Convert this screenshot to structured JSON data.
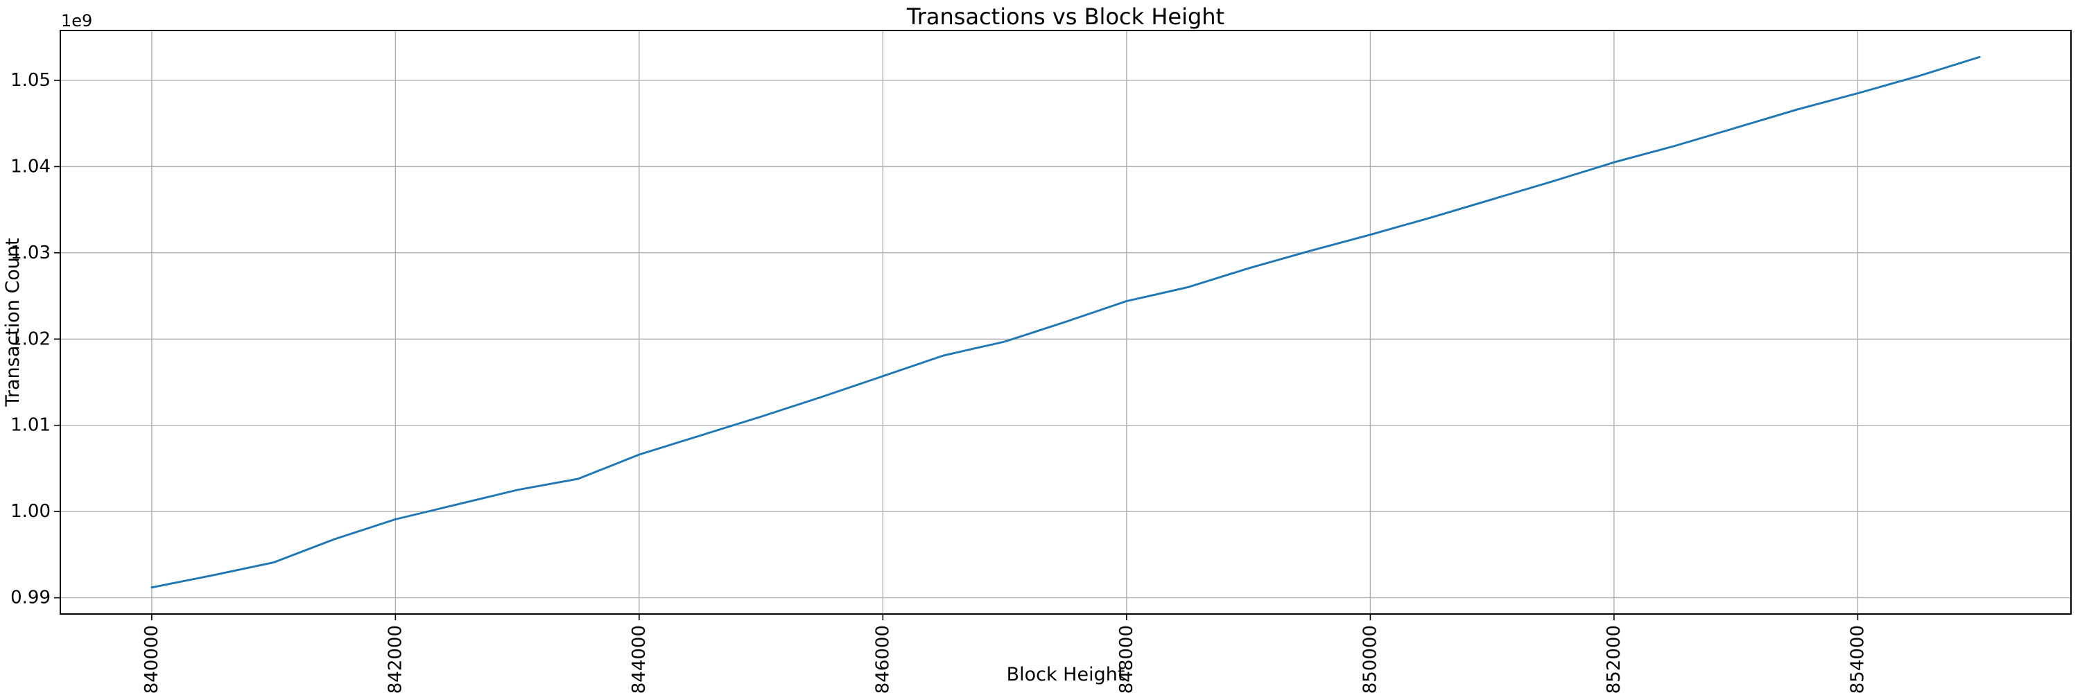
{
  "chart_data": {
    "type": "line",
    "title": "Transactions vs Block Height",
    "xlabel": "Block Height",
    "ylabel": "Transaction Count",
    "y_offset_label": "1e9",
    "grid": true,
    "legend_position": "none",
    "line_color": "#1f77b4",
    "grid_color": "#b0b0b0",
    "spine_color": "#000000",
    "background_color": "#ffffff",
    "xlim": [
      839250,
      855750
    ],
    "ylim": [
      988120000,
      1055780000
    ],
    "xticks": [
      840000,
      842000,
      844000,
      846000,
      848000,
      850000,
      852000,
      854000
    ],
    "xtick_labels": [
      "840000",
      "842000",
      "844000",
      "846000",
      "848000",
      "850000",
      "852000",
      "854000"
    ],
    "yticks": [
      990000000,
      1000000000,
      1010000000,
      1020000000,
      1030000000,
      1040000000,
      1050000000
    ],
    "ytick_labels": [
      "0.99",
      "1.00",
      "1.01",
      "1.02",
      "1.03",
      "1.04",
      "1.05"
    ],
    "x": [
      840000,
      840500,
      841000,
      841500,
      842000,
      842500,
      843000,
      843500,
      844000,
      844500,
      845000,
      845500,
      846000,
      846500,
      847000,
      847500,
      848000,
      848500,
      849000,
      849500,
      850000,
      850500,
      851000,
      851500,
      852000,
      852500,
      853000,
      853500,
      854000,
      854500,
      855000
    ],
    "y": [
      991200000,
      992600000,
      994100000,
      996800000,
      999100000,
      1000800000,
      1002500000,
      1003800000,
      1006600000,
      1008800000,
      1011000000,
      1013300000,
      1015700000,
      1018100000,
      1019700000,
      1022000000,
      1024400000,
      1026000000,
      1028200000,
      1030200000,
      1032100000,
      1034100000,
      1036200000,
      1038300000,
      1040500000,
      1042400000,
      1044500000,
      1046600000,
      1048500000,
      1050500000,
      1052700000
    ]
  }
}
